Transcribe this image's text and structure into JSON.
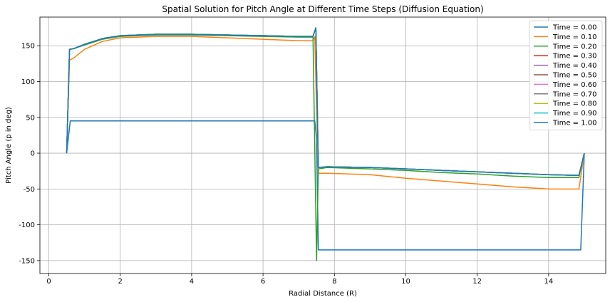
{
  "chart_data": {
    "type": "line",
    "title": "Spatial Solution for Pitch Angle at Different Time Steps (Diffusion Equation)",
    "xlabel": "Radial Distance (R)",
    "ylabel": "Pitch Angle (p in deg)",
    "xlim": [
      -0.25,
      15.6
    ],
    "ylim": [
      -168,
      190
    ],
    "xticks": [
      0,
      2,
      4,
      6,
      8,
      10,
      12,
      14
    ],
    "yticks": [
      -150,
      -100,
      -50,
      0,
      50,
      100,
      150
    ],
    "grid": true,
    "legend_position": "top-right",
    "series": [
      {
        "name": "Time = 0.00",
        "color": "#1f77b4",
        "points": [
          [
            0.5,
            0
          ],
          [
            0.6,
            45
          ],
          [
            7.45,
            45
          ],
          [
            7.5,
            20
          ],
          [
            7.55,
            -135
          ],
          [
            14.9,
            -135
          ],
          [
            15.0,
            0
          ]
        ]
      },
      {
        "name": "Time = 0.10",
        "color": "#ff7f0e",
        "points": [
          [
            0.5,
            0
          ],
          [
            0.58,
            130
          ],
          [
            0.7,
            133
          ],
          [
            1.0,
            145
          ],
          [
            1.5,
            156
          ],
          [
            2.0,
            161
          ],
          [
            3.0,
            163
          ],
          [
            4.0,
            163
          ],
          [
            5.0,
            161
          ],
          [
            6.0,
            159
          ],
          [
            7.0,
            157
          ],
          [
            7.4,
            157
          ],
          [
            7.45,
            163
          ],
          [
            7.5,
            60
          ],
          [
            7.55,
            -28
          ],
          [
            7.8,
            -28
          ],
          [
            9.0,
            -30
          ],
          [
            10.0,
            -35
          ],
          [
            11.0,
            -39
          ],
          [
            12.0,
            -43
          ],
          [
            13.0,
            -47
          ],
          [
            14.0,
            -50
          ],
          [
            14.85,
            -50
          ],
          [
            15.0,
            0
          ]
        ]
      },
      {
        "name": "Time = 0.20",
        "color": "#2ca02c",
        "points": [
          [
            0.5,
            0
          ],
          [
            0.58,
            145
          ],
          [
            0.7,
            146
          ],
          [
            1.0,
            151
          ],
          [
            1.5,
            159
          ],
          [
            2.0,
            163
          ],
          [
            3.0,
            165
          ],
          [
            4.0,
            165
          ],
          [
            5.0,
            164
          ],
          [
            6.0,
            163
          ],
          [
            7.0,
            162
          ],
          [
            7.4,
            162
          ],
          [
            7.5,
            -150
          ],
          [
            7.55,
            -22
          ],
          [
            7.8,
            -20
          ],
          [
            9.0,
            -22
          ],
          [
            10.0,
            -24
          ],
          [
            11.0,
            -27
          ],
          [
            12.0,
            -29
          ],
          [
            13.0,
            -32
          ],
          [
            14.0,
            -34
          ],
          [
            14.85,
            -34
          ],
          [
            15.0,
            0
          ]
        ]
      },
      {
        "name": "Time = 0.30",
        "color": "#d62728",
        "points": [
          [
            0.5,
            0
          ],
          [
            0.58,
            145
          ],
          [
            0.7,
            146
          ],
          [
            1.0,
            152
          ],
          [
            1.5,
            160
          ],
          [
            2.0,
            164
          ],
          [
            3.0,
            166
          ],
          [
            4.0,
            166
          ],
          [
            5.0,
            165
          ],
          [
            6.0,
            164
          ],
          [
            7.0,
            163
          ],
          [
            7.4,
            163
          ],
          [
            7.48,
            175
          ],
          [
            7.55,
            -20
          ],
          [
            7.8,
            -19
          ],
          [
            9.0,
            -20
          ],
          [
            10.0,
            -22
          ],
          [
            11.0,
            -24
          ],
          [
            12.0,
            -26
          ],
          [
            13.0,
            -28
          ],
          [
            14.0,
            -30
          ],
          [
            14.85,
            -31
          ],
          [
            15.0,
            0
          ]
        ]
      },
      {
        "name": "Time = 0.40",
        "color": "#9467bd",
        "points": [
          [
            0.5,
            0
          ],
          [
            0.58,
            145
          ],
          [
            0.7,
            146
          ],
          [
            1.0,
            152
          ],
          [
            1.5,
            160
          ],
          [
            2.0,
            164
          ],
          [
            3.0,
            166
          ],
          [
            4.0,
            166
          ],
          [
            5.0,
            165
          ],
          [
            6.0,
            164
          ],
          [
            7.0,
            163
          ],
          [
            7.4,
            163
          ],
          [
            7.48,
            175
          ],
          [
            7.55,
            -20
          ],
          [
            7.8,
            -19
          ],
          [
            9.0,
            -20
          ],
          [
            10.0,
            -22
          ],
          [
            11.0,
            -24
          ],
          [
            12.0,
            -26
          ],
          [
            13.0,
            -28
          ],
          [
            14.0,
            -30
          ],
          [
            14.85,
            -31
          ],
          [
            15.0,
            0
          ]
        ]
      },
      {
        "name": "Time = 0.50",
        "color": "#8c564b",
        "points": [
          [
            0.5,
            0
          ],
          [
            0.58,
            145
          ],
          [
            0.7,
            146
          ],
          [
            1.0,
            152
          ],
          [
            1.5,
            160
          ],
          [
            2.0,
            164
          ],
          [
            3.0,
            166
          ],
          [
            4.0,
            166
          ],
          [
            5.0,
            165
          ],
          [
            6.0,
            164
          ],
          [
            7.0,
            163
          ],
          [
            7.4,
            163
          ],
          [
            7.48,
            175
          ],
          [
            7.55,
            -20
          ],
          [
            7.8,
            -19
          ],
          [
            9.0,
            -20
          ],
          [
            10.0,
            -22
          ],
          [
            11.0,
            -24
          ],
          [
            12.0,
            -26
          ],
          [
            13.0,
            -28
          ],
          [
            14.0,
            -30
          ],
          [
            14.85,
            -31
          ],
          [
            15.0,
            0
          ]
        ]
      },
      {
        "name": "Time = 0.60",
        "color": "#e377c2",
        "points": [
          [
            0.5,
            0
          ],
          [
            0.58,
            145
          ],
          [
            0.7,
            146
          ],
          [
            1.0,
            152
          ],
          [
            1.5,
            160
          ],
          [
            2.0,
            164
          ],
          [
            3.0,
            166
          ],
          [
            4.0,
            166
          ],
          [
            5.0,
            165
          ],
          [
            6.0,
            164
          ],
          [
            7.0,
            163
          ],
          [
            7.4,
            163
          ],
          [
            7.48,
            175
          ],
          [
            7.55,
            -20
          ],
          [
            7.8,
            -19
          ],
          [
            9.0,
            -20
          ],
          [
            10.0,
            -22
          ],
          [
            11.0,
            -24
          ],
          [
            12.0,
            -26
          ],
          [
            13.0,
            -28
          ],
          [
            14.0,
            -30
          ],
          [
            14.85,
            -31
          ],
          [
            15.0,
            0
          ]
        ]
      },
      {
        "name": "Time = 0.70",
        "color": "#7f7f7f",
        "points": [
          [
            0.5,
            0
          ],
          [
            0.58,
            145
          ],
          [
            0.7,
            146
          ],
          [
            1.0,
            152
          ],
          [
            1.5,
            160
          ],
          [
            2.0,
            164
          ],
          [
            3.0,
            166
          ],
          [
            4.0,
            166
          ],
          [
            5.0,
            165
          ],
          [
            6.0,
            164
          ],
          [
            7.0,
            163
          ],
          [
            7.4,
            163
          ],
          [
            7.48,
            175
          ],
          [
            7.55,
            -20
          ],
          [
            7.8,
            -19
          ],
          [
            9.0,
            -20
          ],
          [
            10.0,
            -22
          ],
          [
            11.0,
            -24
          ],
          [
            12.0,
            -26
          ],
          [
            13.0,
            -28
          ],
          [
            14.0,
            -30
          ],
          [
            14.85,
            -31
          ],
          [
            15.0,
            0
          ]
        ]
      },
      {
        "name": "Time = 0.80",
        "color": "#bcbd22",
        "points": [
          [
            0.5,
            0
          ],
          [
            0.58,
            145
          ],
          [
            0.7,
            146
          ],
          [
            1.0,
            152
          ],
          [
            1.5,
            160
          ],
          [
            2.0,
            164
          ],
          [
            3.0,
            166
          ],
          [
            4.0,
            166
          ],
          [
            5.0,
            165
          ],
          [
            6.0,
            164
          ],
          [
            7.0,
            163
          ],
          [
            7.4,
            163
          ],
          [
            7.48,
            175
          ],
          [
            7.55,
            -20
          ],
          [
            7.8,
            -19
          ],
          [
            9.0,
            -20
          ],
          [
            10.0,
            -22
          ],
          [
            11.0,
            -24
          ],
          [
            12.0,
            -26
          ],
          [
            13.0,
            -28
          ],
          [
            14.0,
            -30
          ],
          [
            14.85,
            -31
          ],
          [
            15.0,
            0
          ]
        ]
      },
      {
        "name": "Time = 0.90",
        "color": "#17becf",
        "points": [
          [
            0.5,
            0
          ],
          [
            0.58,
            145
          ],
          [
            0.7,
            146
          ],
          [
            1.0,
            152
          ],
          [
            1.5,
            160
          ],
          [
            2.0,
            164
          ],
          [
            3.0,
            166
          ],
          [
            4.0,
            166
          ],
          [
            5.0,
            165
          ],
          [
            6.0,
            164
          ],
          [
            7.0,
            163
          ],
          [
            7.4,
            163
          ],
          [
            7.48,
            175
          ],
          [
            7.55,
            -20
          ],
          [
            7.8,
            -19
          ],
          [
            9.0,
            -20
          ],
          [
            10.0,
            -22
          ],
          [
            11.0,
            -24
          ],
          [
            12.0,
            -26
          ],
          [
            13.0,
            -28
          ],
          [
            14.0,
            -30
          ],
          [
            14.85,
            -31
          ],
          [
            15.0,
            0
          ]
        ]
      },
      {
        "name": "Time = 1.00",
        "color": "#1f77b4",
        "points": [
          [
            0.5,
            0
          ],
          [
            0.58,
            145
          ],
          [
            0.7,
            146
          ],
          [
            1.0,
            152
          ],
          [
            1.5,
            160
          ],
          [
            2.0,
            164
          ],
          [
            3.0,
            166
          ],
          [
            4.0,
            166
          ],
          [
            5.0,
            165
          ],
          [
            6.0,
            164
          ],
          [
            7.0,
            163
          ],
          [
            7.4,
            163
          ],
          [
            7.48,
            175
          ],
          [
            7.55,
            -20
          ],
          [
            7.8,
            -19
          ],
          [
            9.0,
            -20
          ],
          [
            10.0,
            -22
          ],
          [
            11.0,
            -24
          ],
          [
            12.0,
            -26
          ],
          [
            13.0,
            -28
          ],
          [
            14.0,
            -30
          ],
          [
            14.85,
            -31
          ],
          [
            15.0,
            0
          ]
        ]
      }
    ]
  }
}
